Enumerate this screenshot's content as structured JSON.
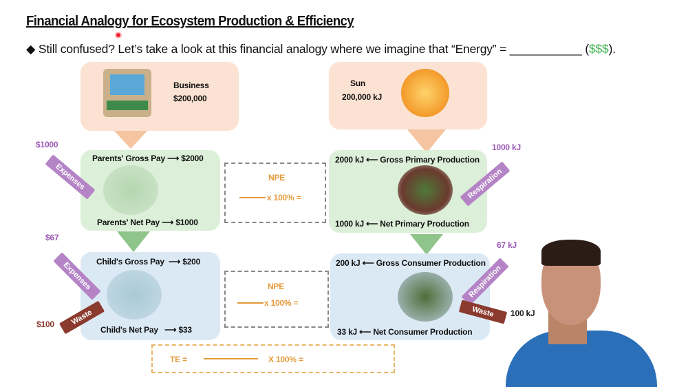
{
  "title": "Financial Analogy for Ecosystem Production & Efficiency",
  "bullet": {
    "text": "Still confused? Let’s take a look at this financial analogy where we imagine that “Energy” = ___________ (",
    "money": "$$$",
    "end": ")."
  },
  "financial": {
    "business_label": "Business",
    "business_value": "$200,000",
    "parents_gross": "Parents' Gross Pay",
    "parents_gross_value": "$2000",
    "parents_net": "Parents' Net Pay",
    "parents_net_value": "$1000",
    "parents_expenses_label": "Expenses",
    "parents_expenses_value": "$1000",
    "child_gross": "Child's Gross Pay",
    "child_gross_value": "$200",
    "child_net": "Child's Net Pay",
    "child_net_value": "$33",
    "child_expenses_label": "Expenses",
    "child_expenses_value": "$67",
    "child_waste_label": "Waste",
    "child_waste_value": "$100"
  },
  "ecosystem": {
    "sun_label": "Sun",
    "sun_value": "200,000 kJ",
    "gpp": "Gross Primary Production",
    "gpp_value": "2000 kJ",
    "npp": "Net Primary Production",
    "npp_value": "1000 kJ",
    "plant_resp_label": "Respiration",
    "plant_resp_value": "1000 kJ",
    "gcp": "Gross Consumer Production",
    "gcp_value": "200 kJ",
    "ncp": "Net Consumer Production",
    "ncp_value": "33 kJ",
    "cons_resp_label": "Respiration",
    "cons_resp_value": "67 kJ",
    "cons_waste_label": "Waste",
    "cons_waste_value": "100 kJ"
  },
  "formulas": {
    "npe1_label": "NPE",
    "npe1_text": "x 100% =",
    "npe2_label": "NPE",
    "npe2_text": "x 100% =",
    "te_label": "TE =",
    "te_text": "X 100% ="
  },
  "colors": {
    "money": "#3cb34a",
    "expenses": "#9b59b6",
    "waste": "#8b3a2e",
    "formula": "#e49a3a"
  }
}
